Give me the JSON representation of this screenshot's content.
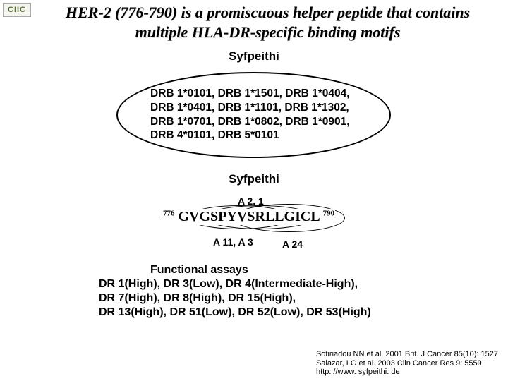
{
  "logo": "CIIC",
  "title_l1": "HER-2 (776-790) is a promiscuous helper peptide that contains",
  "title_l2": "multiple HLA-DR-specific binding motifs",
  "syf_top": "Syfpeithi",
  "alleles_l1": "DRB 1*0101, DRB 1*1501, DRB 1*0404,",
  "alleles_l2": "DRB 1*0401, DRB 1*1101, DRB 1*1302,",
  "alleles_l3": "DRB 1*0701, DRB 1*0802, DRB 1*0901,",
  "alleles_l4": "DRB 4*0101, DRB 5*0101",
  "syf_mid": "Syfpeithi",
  "a21": "A 2. 1",
  "seq_start": "776",
  "seq_text": "GVGSPYVSRLLGICL",
  "seq_end": "790",
  "a11": "A 11, A 3",
  "a24": "A 24",
  "func_hdr": "Functional assays",
  "func_l1": "DR 1(High), DR 3(Low), DR 4(Intermediate-High),",
  "func_l2": "DR 7(High), DR 8(High), DR 15(High),",
  "func_l3": "DR 13(High), DR 51(Low), DR 52(Low), DR 53(High)",
  "ref1": "Sotiriadou NN et al. 2001 Brit. J Cancer 85(10): 1527",
  "ref2": "Salazar, LG et al. 2003 Clin Cancer Res 9: 5559",
  "ref3": "http: //www. syfpeithi. de"
}
